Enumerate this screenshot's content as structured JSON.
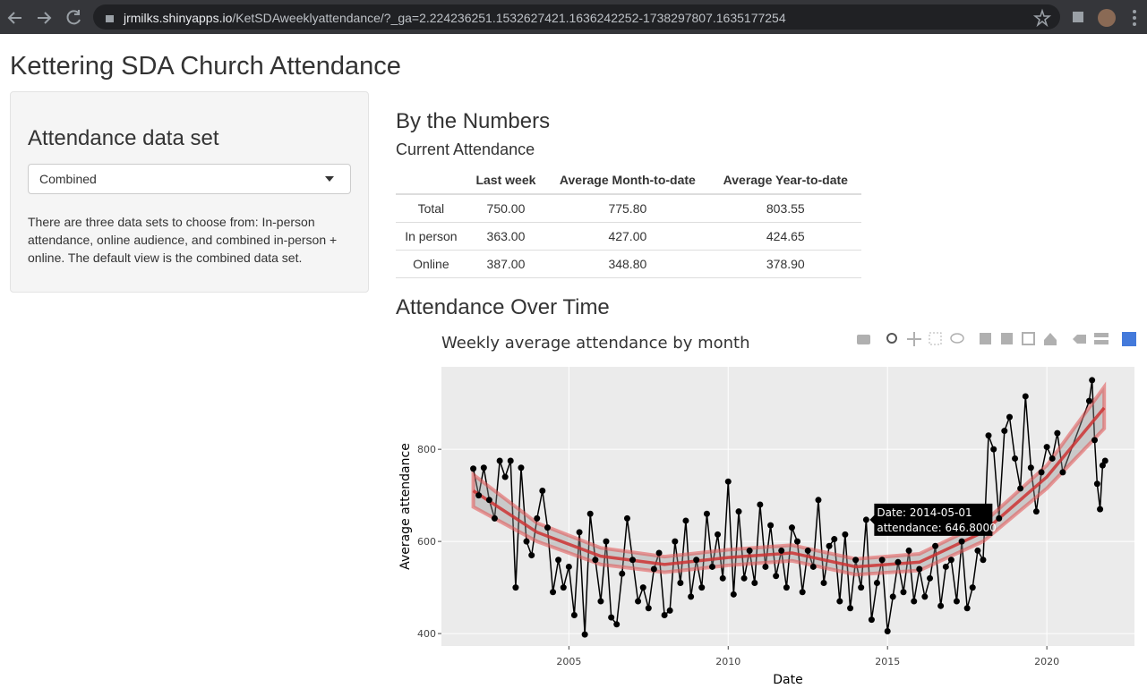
{
  "browser": {
    "url_host": "jrmilks.shinyapps.io",
    "url_path": "/KetSDAweeklyattendance/?_ga=2.224236251.1532627421.1636242252-1738297807.1635177254"
  },
  "app_title": "Kettering SDA Church Attendance",
  "sidebar": {
    "heading": "Attendance data set",
    "select_value": "Combined",
    "description": "There are three data sets to choose from: In-person attendance, online audience, and combined in-person + online. The default view is the combined data set."
  },
  "numbers": {
    "heading": "By the Numbers",
    "subheading": "Current Attendance",
    "table": {
      "columns": [
        "Last week",
        "Average Month-to-date",
        "Average Year-to-date"
      ],
      "rows": [
        [
          "Total",
          "750.00",
          "775.80",
          "803.55"
        ],
        [
          "In person",
          "363.00",
          "427.00",
          "424.65"
        ],
        [
          "Online",
          "387.00",
          "348.80",
          "378.90"
        ]
      ]
    }
  },
  "plot_heading": "Attendance Over Time",
  "chart_data": {
    "type": "line",
    "title": "Weekly average attendance by month",
    "x_label": "Date",
    "y_label": "Average attendance",
    "xlim": [
      2001.0,
      2022.75
    ],
    "xticks": [
      2005,
      2010,
      2015,
      2020
    ],
    "ylim": [
      373,
      979
    ],
    "yticks": [
      400,
      600,
      800
    ],
    "grid": true,
    "color": "#000000",
    "x": [
      2002.0,
      2002.17,
      2002.33,
      2002.5,
      2002.67,
      2002.83,
      2003.0,
      2003.17,
      2003.33,
      2003.5,
      2003.67,
      2003.83,
      2004.0,
      2004.17,
      2004.33,
      2004.5,
      2004.67,
      2004.83,
      2005.0,
      2005.17,
      2005.33,
      2005.5,
      2005.67,
      2005.83,
      2006.0,
      2006.17,
      2006.33,
      2006.5,
      2006.67,
      2006.83,
      2007.0,
      2007.17,
      2007.33,
      2007.5,
      2007.67,
      2007.83,
      2008.0,
      2008.17,
      2008.33,
      2008.5,
      2008.67,
      2008.83,
      2009.0,
      2009.17,
      2009.33,
      2009.5,
      2009.67,
      2009.83,
      2010.0,
      2010.17,
      2010.33,
      2010.5,
      2010.67,
      2010.83,
      2011.0,
      2011.17,
      2011.33,
      2011.5,
      2011.67,
      2011.83,
      2012.0,
      2012.17,
      2012.33,
      2012.5,
      2012.67,
      2012.83,
      2013.0,
      2013.17,
      2013.33,
      2013.5,
      2013.67,
      2013.83,
      2014.0,
      2014.17,
      2014.33,
      2014.5,
      2014.67,
      2014.83,
      2015.0,
      2015.17,
      2015.33,
      2015.5,
      2015.67,
      2015.83,
      2016.0,
      2016.17,
      2016.33,
      2016.5,
      2016.67,
      2016.83,
      2017.0,
      2017.17,
      2017.33,
      2017.5,
      2017.67,
      2017.83,
      2018.0,
      2018.17,
      2018.33,
      2018.5,
      2018.67,
      2018.83,
      2019.0,
      2019.17,
      2019.33,
      2019.5,
      2019.67,
      2019.83,
      2020.0,
      2020.17,
      2020.33,
      2020.5,
      2021.33,
      2021.42,
      2021.5,
      2021.58,
      2021.67,
      2021.75,
      2021.83
    ],
    "values": [
      758,
      700,
      760,
      690,
      650,
      775,
      740,
      775,
      500,
      760,
      600,
      570,
      650,
      710,
      630,
      490,
      560,
      500,
      545,
      440,
      620,
      398,
      660,
      560,
      470,
      600,
      435,
      420,
      530,
      650,
      560,
      470,
      500,
      455,
      540,
      575,
      440,
      450,
      600,
      510,
      645,
      480,
      560,
      500,
      660,
      545,
      615,
      520,
      730,
      485,
      665,
      520,
      580,
      510,
      680,
      545,
      635,
      525,
      580,
      500,
      630,
      600,
      490,
      580,
      545,
      690,
      510,
      590,
      605,
      470,
      615,
      455,
      560,
      500,
      647,
      430,
      510,
      560,
      405,
      480,
      555,
      490,
      580,
      470,
      540,
      480,
      520,
      590,
      460,
      545,
      560,
      470,
      600,
      455,
      500,
      580,
      560,
      830,
      800,
      650,
      840,
      870,
      780,
      715,
      915,
      760,
      665,
      750,
      805,
      780,
      835,
      750,
      905,
      950,
      820,
      725,
      670,
      765,
      775
    ],
    "trend": {
      "color": "#cc3333",
      "x": [
        2002,
        2004,
        2006,
        2008,
        2010,
        2012,
        2014,
        2016,
        2018,
        2020,
        2021.8
      ],
      "values": [
        710,
        620,
        568,
        550,
        565,
        575,
        545,
        555,
        620,
        740,
        890
      ],
      "lower": [
        675,
        600,
        550,
        533,
        548,
        558,
        528,
        537,
        600,
        715,
        845
      ],
      "upper": [
        745,
        640,
        586,
        567,
        582,
        592,
        562,
        573,
        640,
        765,
        935
      ]
    },
    "tooltip": {
      "date": "Date: 2014-05-01",
      "value": "attendance: 646.8000"
    }
  }
}
